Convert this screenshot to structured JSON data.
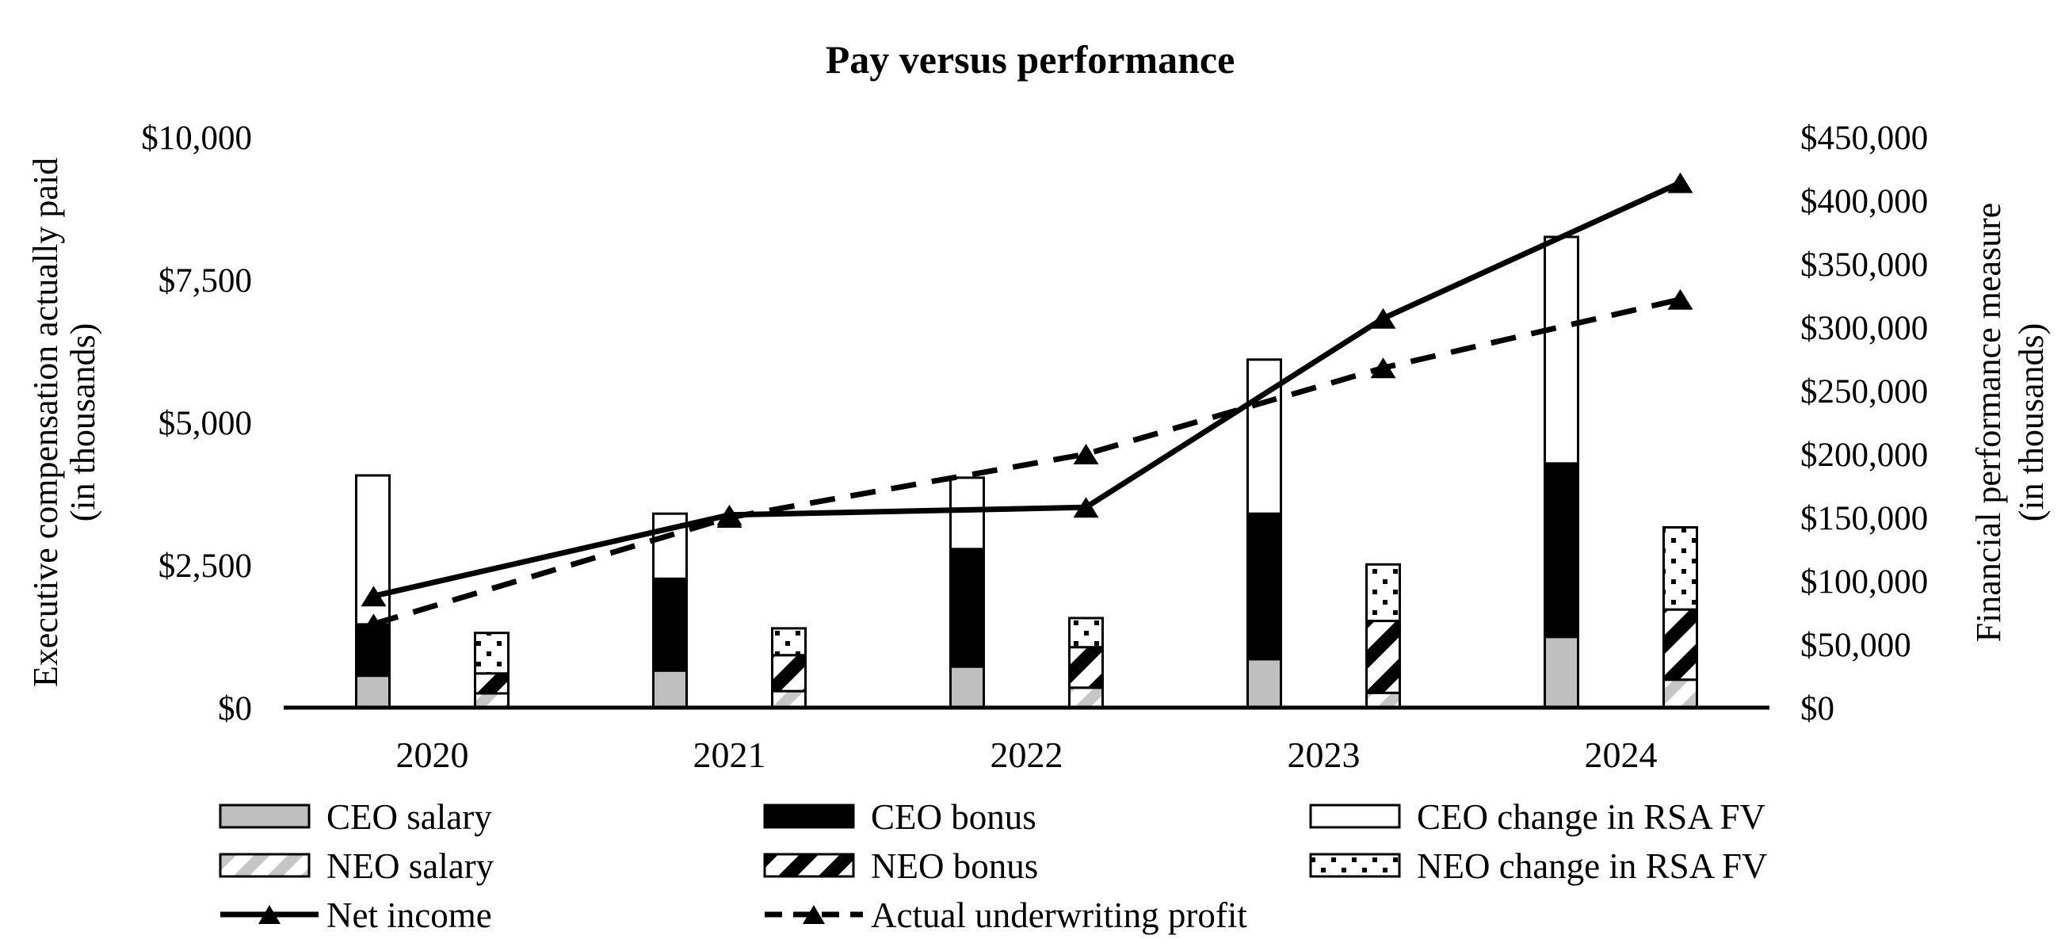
{
  "title": "Pay versus performance",
  "left_axis": {
    "title_line1": "Executive compensation actually paid",
    "title_line2": "(in thousands)",
    "tick_labels": [
      "$10,000",
      "$7,500",
      "$5,000",
      "$2,500",
      "$0"
    ],
    "tick_values": [
      10000,
      7500,
      5000,
      2500,
      0
    ]
  },
  "right_axis": {
    "title_line1": "Financial performance measure",
    "title_line2": "(in thousands)",
    "tick_labels": [
      "$450,000",
      "$400,000",
      "$350,000",
      "$300,000",
      "$250,000",
      "$200,000",
      "$150,000",
      "$100,000",
      "$50,000",
      "$0"
    ],
    "tick_values": [
      450000,
      400000,
      350000,
      300000,
      250000,
      200000,
      150000,
      100000,
      50000,
      0
    ]
  },
  "chart_data": {
    "type": "combo: stacked-bar + line",
    "categories": [
      "2020",
      "2021",
      "2022",
      "2023",
      "2024"
    ],
    "bar_axis": "left, executive compensation in thousands USD",
    "line_axis": "right, financial performance in thousands USD",
    "left_ylim": [
      0,
      10000
    ],
    "right_ylim": [
      0,
      450000
    ],
    "grid": "off",
    "legend_position": "bottom",
    "series": [
      {
        "name": "CEO salary",
        "type": "bar",
        "stack": "CEO",
        "pattern": "solid-gray",
        "values": [
          560,
          650,
          720,
          850,
          1240
        ]
      },
      {
        "name": "CEO bonus",
        "type": "bar",
        "stack": "CEO",
        "pattern": "solid-black",
        "values": [
          900,
          1610,
          2060,
          2550,
          3040
        ]
      },
      {
        "name": "CEO change in RSA FV",
        "type": "bar",
        "stack": "CEO",
        "pattern": "white",
        "values": [
          2610,
          1140,
          1250,
          2700,
          3970
        ]
      },
      {
        "name": "NEO salary",
        "type": "bar",
        "stack": "NEO",
        "pattern": "light-hatch",
        "values": [
          250,
          290,
          350,
          260,
          490
        ]
      },
      {
        "name": "NEO bonus",
        "type": "bar",
        "stack": "NEO",
        "pattern": "bold-hatch",
        "values": [
          350,
          630,
          710,
          1260,
          1230
        ]
      },
      {
        "name": "NEO change in RSA FV",
        "type": "bar",
        "stack": "NEO",
        "pattern": "dotted",
        "values": [
          710,
          470,
          510,
          990,
          1440
        ]
      },
      {
        "name": "Net income",
        "type": "line",
        "style": "solid-triangle",
        "values": [
          88000,
          152000,
          158000,
          307000,
          414000
        ]
      },
      {
        "name": "Actual underwriting profit",
        "type": "line",
        "style": "dashed-triangle",
        "values": [
          66000,
          150000,
          200000,
          268000,
          322000
        ]
      }
    ]
  },
  "legend": {
    "rows": [
      [
        {
          "label": "CEO salary",
          "swatch": "solid-gray"
        },
        {
          "label": "CEO bonus",
          "swatch": "solid-black"
        },
        {
          "label": "CEO change in RSA FV",
          "swatch": "white"
        }
      ],
      [
        {
          "label": "NEO salary",
          "swatch": "light-hatch"
        },
        {
          "label": "NEO bonus",
          "swatch": "bold-hatch"
        },
        {
          "label": "NEO change in RSA FV",
          "swatch": "dotted"
        }
      ],
      [
        {
          "label": "Net income",
          "swatch": "line-solid"
        },
        {
          "label": "Actual underwriting profit",
          "swatch": "line-dashed"
        }
      ]
    ]
  },
  "colors": {
    "black": "#000000",
    "white": "#ffffff",
    "gray_fill": "#bfbfbf",
    "hatch_light_gray": "#c6c6c6"
  }
}
